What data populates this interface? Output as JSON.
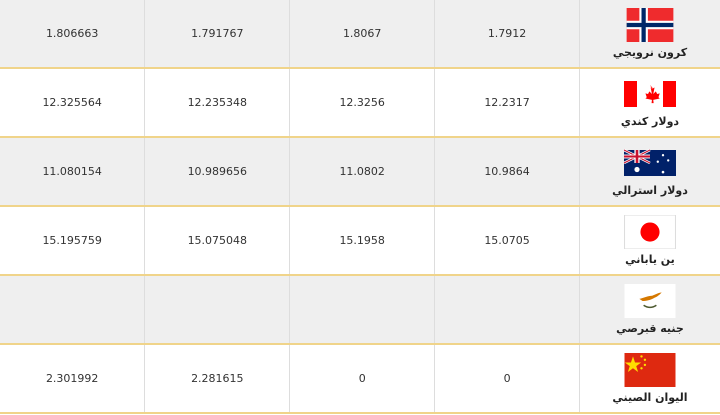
{
  "rows": [
    {
      "c1": "1.806663",
      "c2": "1.791767",
      "c3": "1.8067",
      "c4": "1.7912",
      "name": "كرون نرويجي",
      "flag": "norway-flag"
    },
    {
      "c1": "12.325564",
      "c2": "12.235348",
      "c3": "12.3256",
      "c4": "12.2317",
      "name": "دولار كندي",
      "flag": "canada-flag"
    },
    {
      "c1": "11.080154",
      "c2": "10.989656",
      "c3": "11.0802",
      "c4": "10.9864",
      "name": "دولار استرالي",
      "flag": "australia-flag"
    },
    {
      "c1": "15.195759",
      "c2": "15.075048",
      "c3": "15.1958",
      "c4": "15.0705",
      "name": "ين ياباني",
      "flag": "japan-flag"
    },
    {
      "c1": "",
      "c2": "",
      "c3": "",
      "c4": "",
      "name": "جنيه قبرصي",
      "flag": "cyprus-flag"
    },
    {
      "c1": "2.301992",
      "c2": "2.281615",
      "c3": "0",
      "c4": "0",
      "name": "اليوان الصيني",
      "flag": "china-flag"
    }
  ]
}
